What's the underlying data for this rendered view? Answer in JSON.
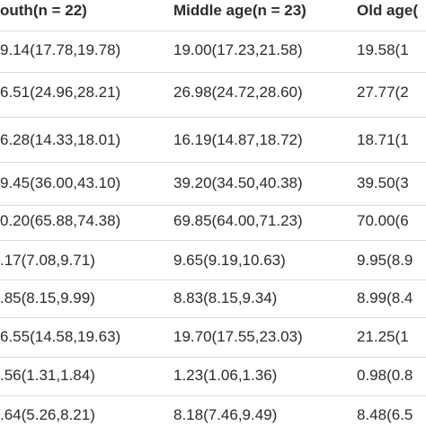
{
  "table": {
    "header": [
      "outh(n = 22)",
      "Middle age(n = 23)",
      "Old age("
    ],
    "rows": [
      [
        "9.14(17.78,19.78)",
        "19.00(17.23,21.58)",
        "19.58(1"
      ],
      [
        "6.51(24.96,28.21)",
        "26.98(24.72,28.60)",
        "27.77(2"
      ],
      [
        "6.28(14.33,18.01)",
        "16.19(14.87,18.72)",
        "18.71(1"
      ],
      [
        "9.45(36.00,43.10)",
        "39.20(34.50,40.38)",
        "39.50(3"
      ],
      [
        "0.20(65.88,74.38)",
        "69.85(64.00,71.23)",
        "70.00(6"
      ],
      [
        ".17(7.08,9.71)",
        "9.65(9.19,10.63)",
        "9.95(8.9"
      ],
      [
        ".85(8.15,9.99)",
        "8.83(8.15,9.34)",
        "8.99(8.4"
      ],
      [
        "6.55(14.58,19.63)",
        "19.70(17.55,23.03)",
        "21.25(1"
      ],
      [
        ".56(1.31,1.84)",
        "1.23(1.06,1.36)",
        "0.98(0.8"
      ],
      [
        ".64(5.26,8.21)",
        "8.18(7.46,9.49)",
        "8.48(6.5"
      ]
    ]
  }
}
